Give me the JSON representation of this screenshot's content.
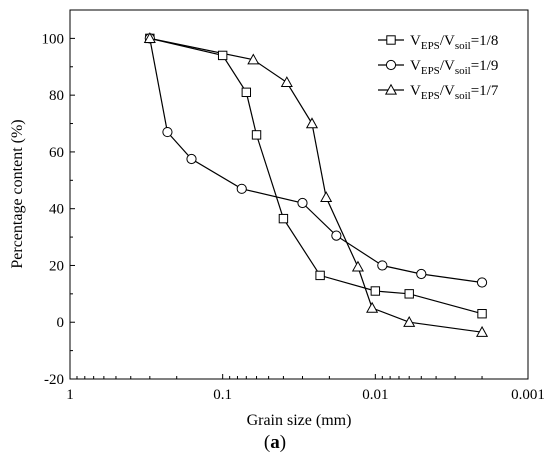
{
  "chart_data": {
    "type": "line",
    "xlabel": "Grain size (mm)",
    "ylabel": "Percentage content (%)",
    "x_scale": "log",
    "x_reversed": true,
    "xlim": [
      1,
      0.001
    ],
    "ylim": [
      -20,
      110
    ],
    "x_ticks": [
      1,
      0.1,
      0.01,
      0.001
    ],
    "x_tick_labels": [
      "1",
      "0.1",
      "0.01",
      "0.001"
    ],
    "y_ticks": [
      -20,
      0,
      20,
      40,
      60,
      80,
      100
    ],
    "y_tick_labels": [
      "-20",
      "0",
      "20",
      "40",
      "60",
      "80",
      "100"
    ],
    "grid": false,
    "legend_position": "top-right",
    "series": [
      {
        "label_main": "V",
        "label_sub1": "EPS",
        "label_mid": "/V",
        "label_sub2": "soil",
        "label_tail": "=1/8",
        "marker": "square",
        "x": [
          0.3,
          0.1,
          0.07,
          0.06,
          0.04,
          0.023,
          0.01,
          0.006,
          0.002
        ],
        "y": [
          100,
          94,
          81,
          66,
          36.5,
          16.5,
          11,
          10,
          3
        ]
      },
      {
        "label_main": "V",
        "label_sub1": "EPS",
        "label_mid": "/V",
        "label_sub2": "soil",
        "label_tail": "=1/9",
        "marker": "circle",
        "x": [
          0.3,
          0.23,
          0.16,
          0.075,
          0.03,
          0.018,
          0.009,
          0.005,
          0.002
        ],
        "y": [
          100,
          67,
          57.5,
          47,
          42,
          30.5,
          20,
          17,
          14
        ]
      },
      {
        "label_main": "V",
        "label_sub1": "EPS",
        "label_mid": "/V",
        "label_sub2": "soil",
        "label_tail": "=1/7",
        "marker": "triangle",
        "x": [
          0.3,
          0.063,
          0.038,
          0.026,
          0.021,
          0.013,
          0.0105,
          0.006,
          0.002
        ],
        "y": [
          100,
          92.5,
          84.5,
          70,
          44,
          19.5,
          5,
          0,
          -3.5
        ]
      }
    ]
  },
  "caption": {
    "open": "(",
    "letter": "a",
    "close": ")"
  }
}
